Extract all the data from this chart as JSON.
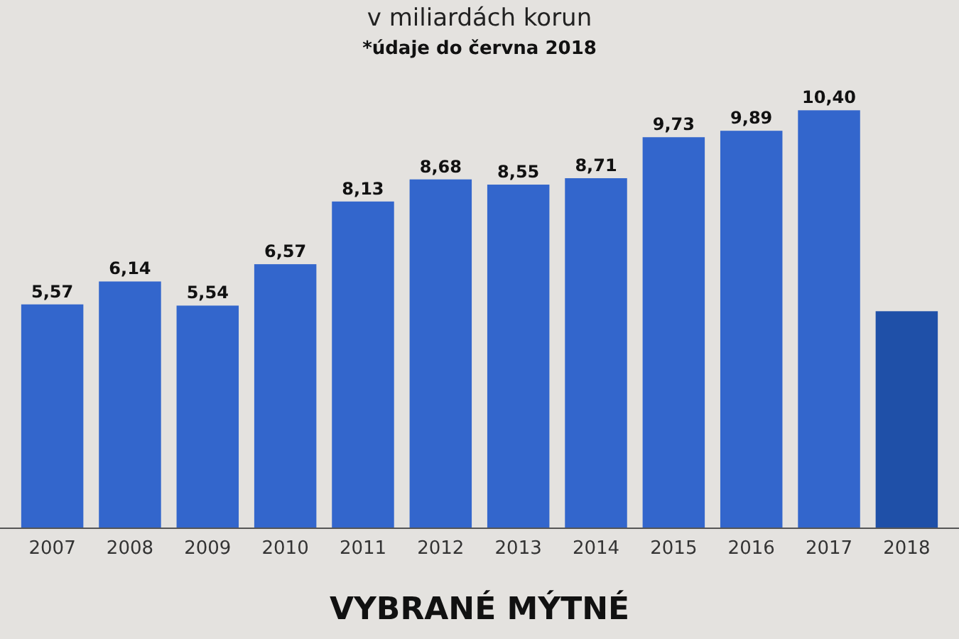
{
  "chart_data": {
    "type": "bar",
    "title": "VYBRANÉ MÝTNÉ",
    "subtitle": "v miliardách korun",
    "annotations": [
      "*údaje do června 2018"
    ],
    "categories": [
      "2007",
      "2008",
      "2009",
      "2010",
      "2011",
      "2012",
      "2013",
      "2014",
      "2015",
      "2016",
      "2017",
      "2018"
    ],
    "values": [
      5.57,
      6.14,
      5.54,
      6.57,
      8.13,
      8.68,
      8.55,
      8.71,
      9.73,
      9.89,
      10.4,
      5.4
    ],
    "value_labels": [
      "5,57",
      "6,14",
      "5,54",
      "6,57",
      "8,13",
      "8,68",
      "8,55",
      "8,71",
      "9,73",
      "9,89",
      "10,40",
      null
    ],
    "colors": [
      "#3366cc",
      "#3366cc",
      "#3366cc",
      "#3366cc",
      "#3366cc",
      "#3366cc",
      "#3366cc",
      "#3366cc",
      "#3366cc",
      "#3366cc",
      "#3366cc",
      "#1f50a8"
    ]
  }
}
